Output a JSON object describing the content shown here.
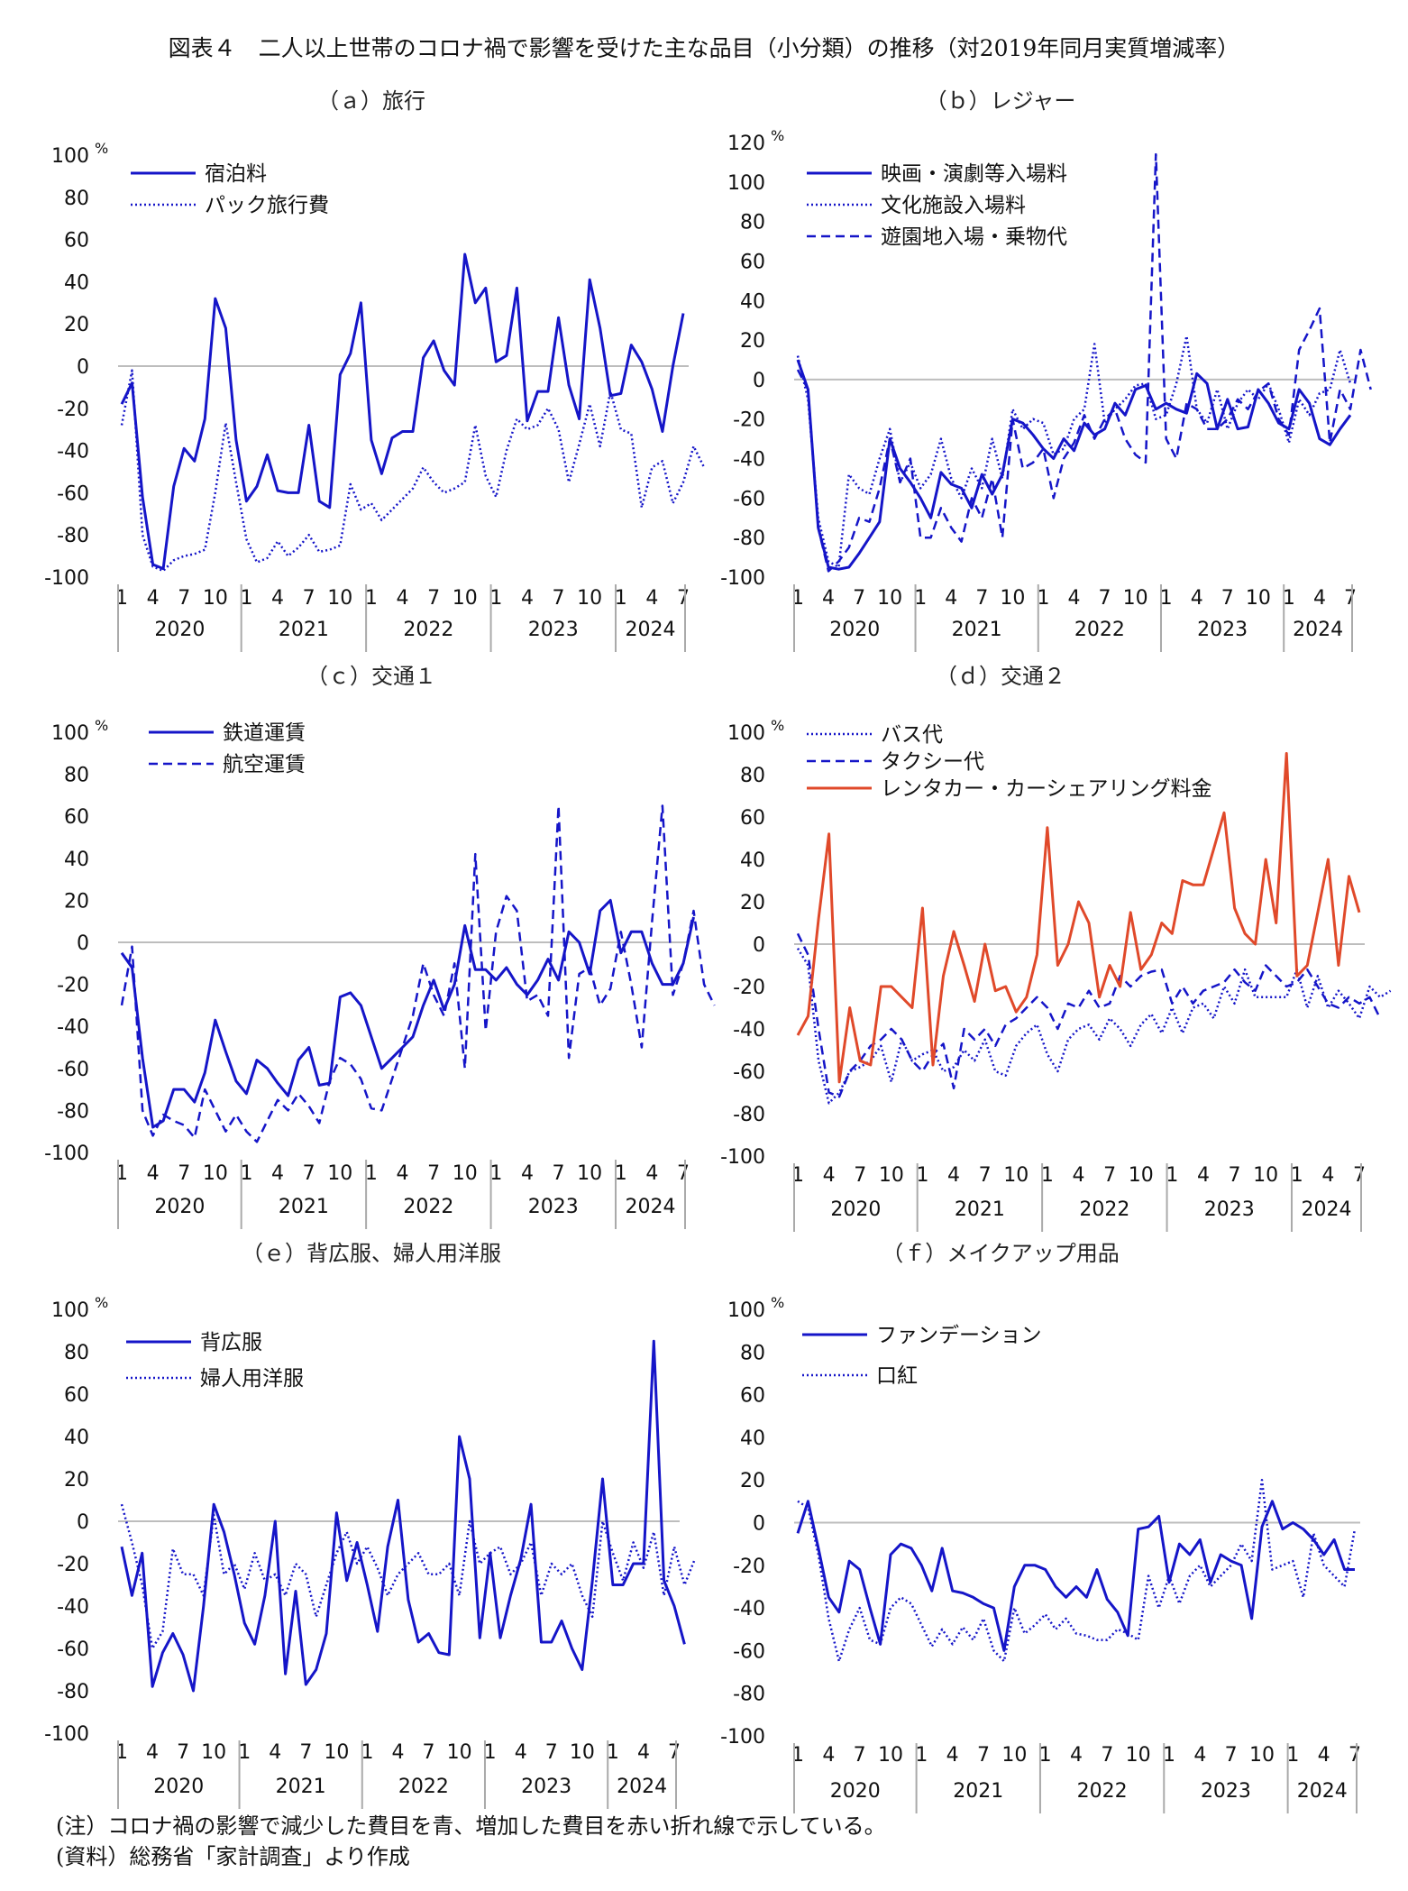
{
  "title": "図表４　二人以上世帯のコロナ禍で影響を受けた主な品目（小分類）の推移（対2019年同月実質増減率）",
  "note": "(注）コロナ禍の影響で減少した費目を青、増加した費目を赤い折れ線で示している。",
  "source": "(資料）総務省「家計調査」より作成",
  "colors": {
    "decrease": "#1515c8",
    "increase": "#e0492a",
    "axis": "#aaaaaa",
    "zero": "#bdbdbd"
  },
  "chart_data": [
    {
      "id": "a",
      "type": "line",
      "panel_label": "（ａ）旅行",
      "unit": "%",
      "ylim": [
        -100,
        100
      ],
      "yticks": [
        100,
        80,
        60,
        40,
        20,
        0,
        -20,
        -40,
        -60,
        -80,
        -100
      ],
      "x_tick_labels": [
        "1",
        "4",
        "7",
        "10",
        "1",
        "4",
        "7",
        "10",
        "1",
        "4",
        "7",
        "10",
        "1",
        "4",
        "7",
        "10",
        "1",
        "4",
        "7"
      ],
      "years": [
        "2020",
        "2021",
        "2022",
        "2023",
        "2024"
      ],
      "series": [
        {
          "name": "宿泊料",
          "style": "solid",
          "color": "#1515c8",
          "values": [
            -18,
            -8,
            -62,
            -94,
            -96,
            -57,
            -39,
            -45,
            -25,
            32,
            18,
            -35,
            -64,
            -57,
            -42,
            -59,
            -60,
            -60,
            -28,
            -64,
            -67,
            -4,
            6,
            30,
            -35,
            -51,
            -34,
            -31,
            -31,
            4,
            12,
            -2,
            -9,
            53,
            30,
            37,
            2,
            5,
            37,
            -26,
            -12,
            -12,
            23,
            -9,
            -25,
            41,
            18,
            -14,
            -13,
            10,
            2,
            -11,
            -31,
            0,
            25
          ]
        },
        {
          "name": "パック旅行費",
          "style": "dotted",
          "color": "#1515c8",
          "values": [
            -28,
            -2,
            -80,
            -95,
            -97,
            -92,
            -90,
            -89,
            -87,
            -60,
            -27,
            -55,
            -82,
            -93,
            -91,
            -83,
            -90,
            -86,
            -80,
            -88,
            -87,
            -85,
            -56,
            -68,
            -65,
            -73,
            -68,
            -63,
            -58,
            -48,
            -55,
            -60,
            -58,
            -55,
            -28,
            -52,
            -62,
            -40,
            -25,
            -30,
            -28,
            -20,
            -30,
            -55,
            -37,
            -18,
            -38,
            -12,
            -30,
            -32,
            -67,
            -48,
            -45,
            -65,
            -55,
            -38,
            -48
          ]
        }
      ]
    },
    {
      "id": "b",
      "type": "line",
      "panel_label": "（ｂ）レジャー",
      "unit": "%",
      "ylim": [
        -100,
        120
      ],
      "yticks": [
        120,
        100,
        80,
        60,
        40,
        20,
        0,
        -20,
        -40,
        -60,
        -80,
        -100
      ],
      "x_tick_labels": [
        "1",
        "4",
        "7",
        "10",
        "1",
        "4",
        "7",
        "10",
        "1",
        "4",
        "7",
        "10",
        "1",
        "4",
        "7",
        "10",
        "1",
        "4",
        "7"
      ],
      "years": [
        "2020",
        "2021",
        "2022",
        "2023",
        "2024"
      ],
      "series": [
        {
          "name": "映画・演劇等入場料",
          "style": "solid",
          "color": "#1515c8",
          "values": [
            10,
            -5,
            -75,
            -95,
            -96,
            -95,
            -88,
            -80,
            -72,
            -30,
            -45,
            -52,
            -60,
            -70,
            -47,
            -53,
            -55,
            -65,
            -48,
            -58,
            -48,
            -20,
            -22,
            -28,
            -35,
            -40,
            -30,
            -36,
            -22,
            -28,
            -25,
            -12,
            -18,
            -5,
            -3,
            -15,
            -12,
            -15,
            -17,
            3,
            -2,
            -25,
            -10,
            -25,
            -24,
            -5,
            -12,
            -22,
            -25,
            -5,
            -12,
            -30,
            -33,
            -25,
            -18
          ]
        },
        {
          "name": "文化施設入場料",
          "style": "dotted",
          "color": "#1515c8",
          "values": [
            12,
            -10,
            -70,
            -92,
            -95,
            -48,
            -55,
            -58,
            -40,
            -25,
            -52,
            -42,
            -55,
            -48,
            -30,
            -50,
            -60,
            -45,
            -55,
            -30,
            -50,
            -15,
            -25,
            -20,
            -22,
            -38,
            -35,
            -20,
            -15,
            18,
            -22,
            -15,
            -10,
            -3,
            -2,
            -20,
            -18,
            -2,
            22,
            -15,
            -22,
            -5,
            -25,
            -12,
            -5,
            -10,
            -2,
            -15,
            -32,
            -10,
            -18,
            -7,
            -5,
            15,
            -2
          ]
        },
        {
          "name": "遊園地入場・乗物代",
          "style": "dashed",
          "color": "#1515c8",
          "values": [
            5,
            -5,
            -75,
            -97,
            -92,
            -85,
            -70,
            -72,
            -55,
            -30,
            -52,
            -40,
            -80,
            -80,
            -65,
            -75,
            -82,
            -60,
            -70,
            -50,
            -80,
            -20,
            -45,
            -42,
            -35,
            -60,
            -40,
            -32,
            -18,
            -30,
            -20,
            -15,
            -30,
            -38,
            -42,
            114,
            -30,
            -40,
            -12,
            -15,
            -25,
            -25,
            -20,
            -10,
            -15,
            -6,
            -2,
            -20,
            -28,
            15,
            25,
            36,
            -32,
            -5,
            -15,
            15,
            -5
          ]
        }
      ]
    },
    {
      "id": "c",
      "type": "line",
      "panel_label": "（ｃ）交通１",
      "unit": "%",
      "ylim": [
        -100,
        100
      ],
      "yticks": [
        100,
        80,
        60,
        40,
        20,
        0,
        -20,
        -40,
        -60,
        -80,
        -100
      ],
      "x_tick_labels": [
        "1",
        "4",
        "7",
        "10",
        "1",
        "4",
        "7",
        "10",
        "1",
        "4",
        "7",
        "10",
        "1",
        "4",
        "7",
        "10",
        "1",
        "4",
        "7"
      ],
      "years": [
        "2020",
        "2021",
        "2022",
        "2023",
        "2024"
      ],
      "series": [
        {
          "name": "鉄道運賃",
          "style": "solid",
          "color": "#1515c8",
          "values": [
            -5,
            -12,
            -55,
            -88,
            -85,
            -70,
            -70,
            -76,
            -62,
            -37,
            -52,
            -66,
            -72,
            -56,
            -60,
            -67,
            -73,
            -56,
            -50,
            -68,
            -67,
            -26,
            -24,
            -30,
            -45,
            -60,
            -55,
            -50,
            -45,
            -30,
            -18,
            -32,
            -20,
            8,
            -13,
            -13,
            -18,
            -12,
            -20,
            -25,
            -18,
            -8,
            -18,
            5,
            0,
            -15,
            15,
            20,
            -5,
            5,
            5,
            -10,
            -20,
            -20,
            -10,
            12
          ]
        },
        {
          "name": "航空運賃",
          "style": "dashed",
          "color": "#1515c8",
          "values": [
            -30,
            -2,
            -80,
            -92,
            -82,
            -85,
            -87,
            -93,
            -70,
            -80,
            -90,
            -82,
            -90,
            -95,
            -85,
            -75,
            -80,
            -72,
            -78,
            -86,
            -66,
            -55,
            -58,
            -65,
            -79,
            -80,
            -65,
            -50,
            -35,
            -10,
            -25,
            -35,
            -10,
            -60,
            42,
            -42,
            5,
            22,
            15,
            -28,
            -25,
            -35,
            65,
            -55,
            -15,
            -12,
            -30,
            -22,
            5,
            -20,
            -50,
            10,
            65,
            -25,
            -10,
            15,
            -20,
            -30
          ]
        }
      ]
    },
    {
      "id": "d",
      "type": "line",
      "panel_label": "（ｄ）交通２",
      "unit": "%",
      "ylim": [
        -100,
        100
      ],
      "yticks": [
        100,
        80,
        60,
        40,
        20,
        0,
        -20,
        -40,
        -60,
        -80,
        -100
      ],
      "x_tick_labels": [
        "1",
        "4",
        "7",
        "10",
        "1",
        "4",
        "7",
        "10",
        "1",
        "4",
        "7",
        "10",
        "1",
        "4",
        "7",
        "10",
        "1",
        "4",
        "7"
      ],
      "years": [
        "2020",
        "2021",
        "2022",
        "2023",
        "2024"
      ],
      "series": [
        {
          "name": "バス代",
          "style": "dotted",
          "color": "#1515c8",
          "values": [
            -2,
            -10,
            -55,
            -75,
            -70,
            -60,
            -58,
            -55,
            -48,
            -65,
            -45,
            -55,
            -52,
            -50,
            -60,
            -58,
            -50,
            -55,
            -45,
            -60,
            -62,
            -48,
            -42,
            -38,
            -52,
            -60,
            -45,
            -40,
            -38,
            -45,
            -35,
            -40,
            -48,
            -38,
            -33,
            -42,
            -30,
            -42,
            -30,
            -28,
            -35,
            -20,
            -28,
            -12,
            -25,
            -25,
            -25,
            -25,
            -12,
            -30,
            -15,
            -30,
            -22,
            -28,
            -35,
            -20,
            -25,
            -22
          ]
        },
        {
          "name": "タクシー代",
          "style": "dashed",
          "color": "#1515c8",
          "values": [
            5,
            -5,
            -40,
            -70,
            -72,
            -60,
            -55,
            -48,
            -45,
            -40,
            -45,
            -55,
            -60,
            -52,
            -47,
            -68,
            -40,
            -45,
            -40,
            -48,
            -38,
            -35,
            -30,
            -25,
            -30,
            -40,
            -28,
            -30,
            -22,
            -30,
            -28,
            -15,
            -20,
            -15,
            -13,
            -12,
            -28,
            -20,
            -28,
            -22,
            -20,
            -18,
            -12,
            -18,
            -22,
            -10,
            -15,
            -20,
            -18,
            -12,
            -20,
            -28,
            -30,
            -25,
            -28,
            -25,
            -35
          ]
        },
        {
          "name": "レンタカー・カーシェアリング料金",
          "style": "solid",
          "color": "#e0492a",
          "values": [
            -43,
            -34,
            12,
            52,
            -65,
            -30,
            -55,
            -57,
            -20,
            -20,
            -25,
            -30,
            17,
            -57,
            -15,
            6,
            -10,
            -27,
            0,
            -22,
            -20,
            -32,
            -25,
            -5,
            55,
            -10,
            0,
            20,
            10,
            -25,
            -10,
            -20,
            15,
            -12,
            -5,
            10,
            5,
            30,
            28,
            28,
            45,
            62,
            17,
            5,
            0,
            40,
            10,
            90,
            -15,
            -10,
            15,
            40,
            -10,
            32,
            15
          ]
        }
      ]
    },
    {
      "id": "e",
      "type": "line",
      "panel_label": "（ｅ）背広服、婦人用洋服",
      "unit": "%",
      "ylim": [
        -100,
        100
      ],
      "yticks": [
        100,
        80,
        60,
        40,
        20,
        0,
        -20,
        -40,
        -60,
        -80,
        -100
      ],
      "x_tick_labels": [
        "1",
        "4",
        "7",
        "10",
        "1",
        "4",
        "7",
        "10",
        "1",
        "4",
        "7",
        "10",
        "1",
        "4",
        "7",
        "10",
        "1",
        "4",
        "7"
      ],
      "years": [
        "2020",
        "2021",
        "2022",
        "2023",
        "2024"
      ],
      "series": [
        {
          "name": "背広服",
          "style": "solid",
          "color": "#1515c8",
          "values": [
            -12,
            -35,
            -15,
            -78,
            -62,
            -53,
            -63,
            -80,
            -40,
            8,
            -5,
            -25,
            -48,
            -58,
            -35,
            0,
            -72,
            -33,
            -77,
            -70,
            -53,
            4,
            -28,
            -10,
            -30,
            -52,
            -12,
            10,
            -37,
            -57,
            -53,
            -62,
            -63,
            40,
            20,
            -55,
            -15,
            -55,
            -35,
            -18,
            8,
            -57,
            -57,
            -47,
            -60,
            -70,
            -28,
            20,
            -30,
            -30,
            -20,
            -20,
            85,
            -28,
            -40,
            -58
          ]
        },
        {
          "name": "婦人用洋服",
          "style": "dotted",
          "color": "#1515c8",
          "values": [
            8,
            -10,
            -30,
            -60,
            -52,
            -13,
            -25,
            -25,
            -35,
            3,
            -25,
            -20,
            -32,
            -15,
            -28,
            -25,
            -35,
            -20,
            -25,
            -45,
            -30,
            -15,
            -5,
            -20,
            -12,
            -22,
            -35,
            -25,
            -20,
            -15,
            -25,
            -25,
            -20,
            -35,
            0,
            -20,
            -15,
            -12,
            -25,
            -20,
            -10,
            -35,
            -20,
            -25,
            -20,
            -35,
            -45,
            0,
            -15,
            -28,
            -10,
            -22,
            -5,
            -35,
            -12,
            -30,
            -18
          ]
        }
      ]
    },
    {
      "id": "f",
      "type": "line",
      "panel_label": "（ｆ）メイクアップ用品",
      "unit": "%",
      "ylim": [
        -100,
        100
      ],
      "yticks": [
        100,
        80,
        60,
        40,
        20,
        0,
        -20,
        -40,
        -60,
        -80,
        -100
      ],
      "x_tick_labels": [
        "1",
        "4",
        "7",
        "10",
        "1",
        "4",
        "7",
        "10",
        "1",
        "4",
        "7",
        "10",
        "1",
        "4",
        "7",
        "10",
        "1",
        "4",
        "7"
      ],
      "years": [
        "2020",
        "2021",
        "2022",
        "2023",
        "2024"
      ],
      "series": [
        {
          "name": "ファンデーション",
          "style": "solid",
          "color": "#1515c8",
          "values": [
            -5,
            10,
            -12,
            -35,
            -42,
            -18,
            -22,
            -40,
            -57,
            -15,
            -10,
            -12,
            -20,
            -32,
            -12,
            -32,
            -33,
            -35,
            -38,
            -40,
            -60,
            -30,
            -20,
            -20,
            -22,
            -30,
            -35,
            -30,
            -35,
            -22,
            -36,
            -42,
            -53,
            -3,
            -2,
            3,
            -28,
            -10,
            -15,
            -8,
            -28,
            -15,
            -18,
            -20,
            -45,
            -2,
            10,
            -3,
            0,
            -3,
            -8,
            -15,
            -8,
            -22,
            -22
          ]
        },
        {
          "name": "口紅",
          "style": "dotted",
          "color": "#1515c8",
          "values": [
            10,
            7,
            -15,
            -45,
            -65,
            -50,
            -40,
            -55,
            -57,
            -40,
            -35,
            -38,
            -48,
            -58,
            -50,
            -57,
            -49,
            -55,
            -45,
            -60,
            -65,
            -40,
            -52,
            -48,
            -43,
            -50,
            -45,
            -52,
            -53,
            -55,
            -55,
            -50,
            -52,
            -55,
            -25,
            -40,
            -25,
            -38,
            -25,
            -20,
            -30,
            -25,
            -20,
            -10,
            -18,
            20,
            -22,
            -20,
            -18,
            -35,
            -5,
            -20,
            -25,
            -30,
            -3
          ]
        }
      ]
    }
  ]
}
